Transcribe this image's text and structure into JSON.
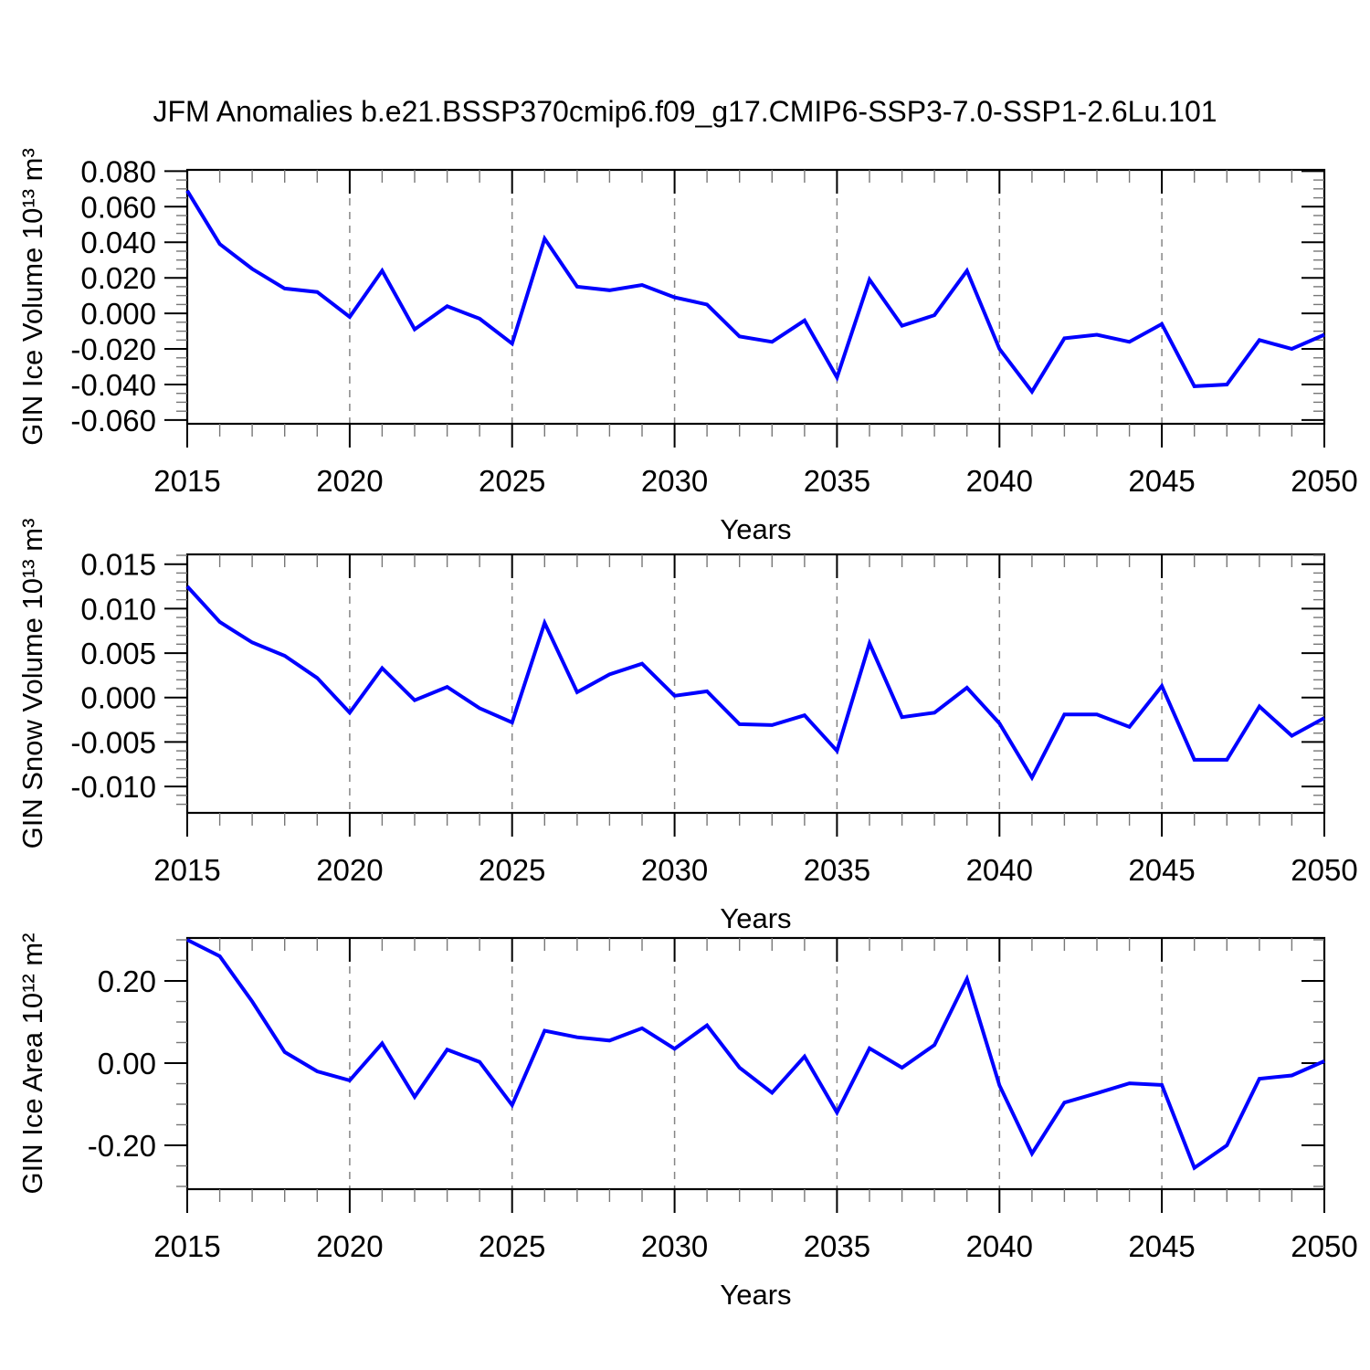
{
  "title": "JFM Anomalies b.e21.BSSP370cmip6.f09_g17.CMIP6-SSP3-7.0-SSP1-2.6Lu.101",
  "accent_color": "#0000ff",
  "grid_color": "#858585",
  "chart_data": [
    {
      "type": "line",
      "ylabel": "GIN Ice Volume 10¹³ m³",
      "xlabel": "Years",
      "xlim": [
        2015,
        2050
      ],
      "ylim": [
        -0.0621,
        0.0807
      ],
      "x": [
        2015,
        2016,
        2017,
        2018,
        2019,
        2020,
        2021,
        2022,
        2023,
        2024,
        2025,
        2026,
        2027,
        2028,
        2029,
        2030,
        2031,
        2032,
        2033,
        2034,
        2035,
        2036,
        2037,
        2038,
        2039,
        2040,
        2041,
        2042,
        2043,
        2044,
        2045,
        2046,
        2047,
        2048,
        2049,
        2050
      ],
      "values": [
        0.069,
        0.039,
        0.025,
        0.014,
        0.012,
        -0.002,
        0.024,
        -0.009,
        0.004,
        -0.003,
        -0.017,
        0.042,
        0.015,
        0.013,
        0.016,
        0.009,
        0.005,
        -0.013,
        -0.016,
        -0.004,
        -0.036,
        0.019,
        -0.007,
        -0.001,
        0.024,
        -0.02,
        -0.044,
        -0.014,
        -0.012,
        -0.016,
        -0.006,
        -0.041,
        -0.04,
        -0.015,
        -0.02,
        -0.012
      ],
      "yticks": [
        0.08,
        0.06,
        0.04,
        0.02,
        0.0,
        -0.02,
        -0.04,
        -0.06
      ],
      "ytick_labels": [
        "0.080",
        "0.060",
        "0.040",
        "0.020",
        "0.000",
        "-0.020",
        "-0.040",
        "-0.060"
      ],
      "y_minor_step": 0.005,
      "xticks": [
        2015,
        2020,
        2025,
        2030,
        2035,
        2040,
        2045,
        2050
      ],
      "xtick_labels": [
        "2015",
        "2020",
        "2025",
        "2030",
        "2035",
        "2040",
        "2045",
        "2050"
      ],
      "grid_years": [
        2020,
        2025,
        2030,
        2035,
        2040,
        2045
      ],
      "line_color": "#0000ff",
      "grid": "vertical-dashed",
      "legend": null
    },
    {
      "type": "line",
      "ylabel": "GIN Snow Volume 10¹³ m³",
      "xlabel": "Years",
      "xlim": [
        2015,
        2050
      ],
      "ylim": [
        -0.01297,
        0.0161
      ],
      "x": [
        2015,
        2016,
        2017,
        2018,
        2019,
        2020,
        2021,
        2022,
        2023,
        2024,
        2025,
        2026,
        2027,
        2028,
        2029,
        2030,
        2031,
        2032,
        2033,
        2034,
        2035,
        2036,
        2037,
        2038,
        2039,
        2040,
        2041,
        2042,
        2043,
        2044,
        2045,
        2046,
        2047,
        2048,
        2049,
        2050
      ],
      "values": [
        0.0125,
        0.0085,
        0.0062,
        0.0047,
        0.0022,
        -0.0017,
        0.0033,
        -0.0003,
        0.0012,
        -0.0012,
        -0.0028,
        0.0084,
        0.0006,
        0.0026,
        0.0038,
        0.0002,
        0.0007,
        -0.003,
        -0.0031,
        -0.002,
        -0.006,
        0.0061,
        -0.0022,
        -0.0017,
        0.0011,
        -0.0029,
        -0.009,
        -0.0019,
        -0.0019,
        -0.0033,
        0.0013,
        -0.007,
        -0.007,
        -0.001,
        -0.0043,
        -0.0023
      ],
      "yticks": [
        0.015,
        0.01,
        0.005,
        0.0,
        -0.005,
        -0.01
      ],
      "ytick_labels": [
        "0.015",
        "0.010",
        "0.005",
        "0.000",
        "-0.005",
        "-0.010"
      ],
      "y_minor_step": 0.001,
      "xticks": [
        2015,
        2020,
        2025,
        2030,
        2035,
        2040,
        2045,
        2050
      ],
      "xtick_labels": [
        "2015",
        "2020",
        "2025",
        "2030",
        "2035",
        "2040",
        "2045",
        "2050"
      ],
      "grid_years": [
        2020,
        2025,
        2030,
        2035,
        2040,
        2045
      ],
      "line_color": "#0000ff",
      "grid": "vertical-dashed",
      "legend": null
    },
    {
      "type": "line",
      "ylabel": "GIN Ice Area 10¹² m²",
      "xlabel": "Years",
      "xlim": [
        2015,
        2050
      ],
      "ylim": [
        -0.3067,
        0.3045
      ],
      "x": [
        2015,
        2016,
        2017,
        2018,
        2019,
        2020,
        2021,
        2022,
        2023,
        2024,
        2025,
        2026,
        2027,
        2028,
        2029,
        2030,
        2031,
        2032,
        2033,
        2034,
        2035,
        2036,
        2037,
        2038,
        2039,
        2040,
        2041,
        2042,
        2043,
        2044,
        2045,
        2046,
        2047,
        2048,
        2049,
        2050
      ],
      "values": [
        0.3,
        0.26,
        0.15,
        0.027,
        -0.02,
        -0.042,
        0.048,
        -0.082,
        0.033,
        0.003,
        -0.102,
        0.079,
        0.063,
        0.055,
        0.085,
        0.035,
        0.092,
        -0.011,
        -0.072,
        0.016,
        -0.12,
        0.036,
        -0.011,
        0.044,
        0.205,
        -0.054,
        -0.22,
        -0.096,
        -0.073,
        -0.049,
        -0.053,
        -0.255,
        -0.2,
        -0.038,
        -0.03,
        0.005
      ],
      "yticks": [
        0.2,
        0.0,
        -0.2
      ],
      "ytick_labels": [
        "0.20",
        "0.00",
        "-0.20"
      ],
      "y_minor_step": 0.05,
      "xticks": [
        2015,
        2020,
        2025,
        2030,
        2035,
        2040,
        2045,
        2050
      ],
      "xtick_labels": [
        "2015",
        "2020",
        "2025",
        "2030",
        "2035",
        "2040",
        "2045",
        "2050"
      ],
      "grid_years": [
        2020,
        2025,
        2030,
        2035,
        2040,
        2045
      ],
      "line_color": "#0000ff",
      "grid": "vertical-dashed",
      "legend": null
    }
  ]
}
